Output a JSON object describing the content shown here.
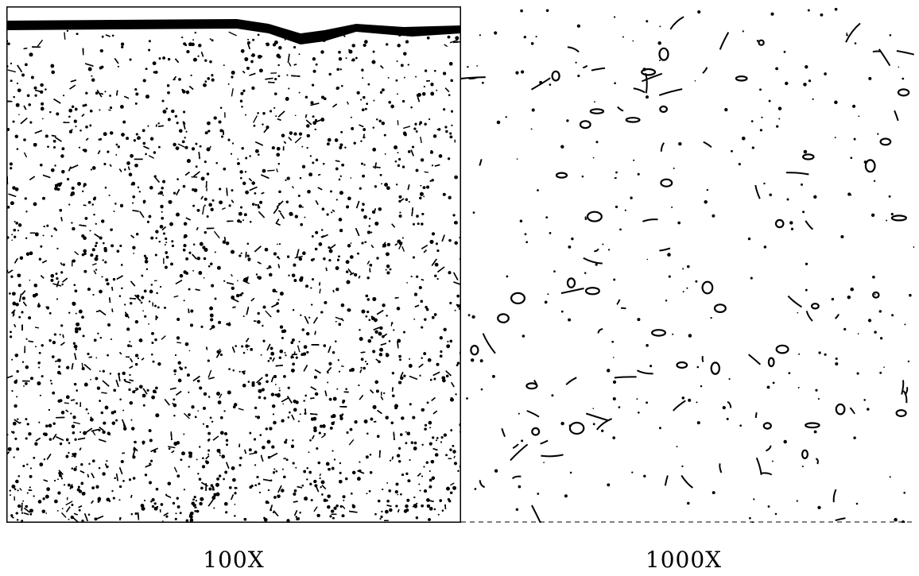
{
  "figure": {
    "panels": [
      {
        "label": "100X"
      },
      {
        "label": "1000X"
      }
    ]
  },
  "colors": {
    "ink": "#000000",
    "paper": "#ffffff"
  }
}
